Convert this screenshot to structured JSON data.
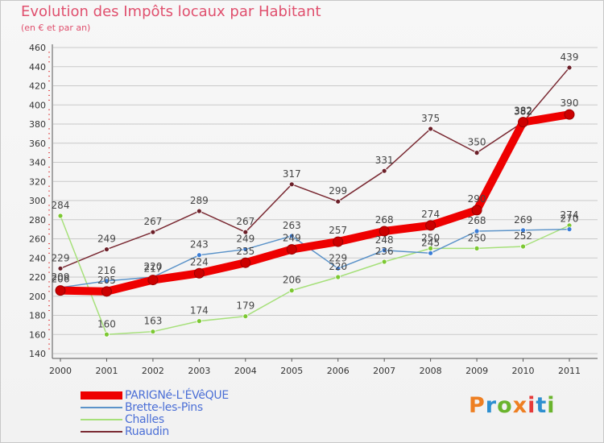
{
  "title": "Evolution des Impôts locaux par Habitant",
  "subtitle": "(en € et par an)",
  "logo": {
    "text": "Proxiti",
    "letter_colors": [
      "#ee7f22",
      "#2e8fd0",
      "#6ab42d",
      "#ee7f22",
      "#e63a3a",
      "#2e8fd0",
      "#6ab42d"
    ]
  },
  "colors": {
    "background": "#f4f4f4",
    "grid": "#c9c9c9",
    "axis_text": "#333333",
    "title": "#e0506e",
    "legend_text": "#4b6fd6"
  },
  "chart_data": {
    "type": "line",
    "title": "Evolution des Impôts locaux par Habitant",
    "subtitle": "(en € et par an)",
    "x": [
      "2000",
      "2001",
      "2002",
      "2003",
      "2004",
      "2005",
      "2006",
      "2007",
      "2008",
      "2009",
      "2010",
      "2011"
    ],
    "ylim": [
      140,
      460
    ],
    "y_ticks": [
      140,
      160,
      180,
      200,
      220,
      240,
      260,
      280,
      300,
      320,
      340,
      360,
      380,
      400,
      420,
      440,
      460
    ],
    "grid": "horizontal",
    "legend_position": "bottom-left",
    "series": [
      {
        "name": "PARIGNé-L'ÉVêQUE",
        "color": "#ee0000",
        "values": [
          206,
          205,
          217,
          224,
          235,
          249,
          257,
          268,
          274,
          290,
          382,
          390
        ],
        "labels": [
          "206",
          "205",
          "217",
          "224",
          "235",
          "249",
          "257",
          "268",
          "274",
          "290",
          "382",
          "390"
        ]
      },
      {
        "name": "Brette-les-Pins",
        "color": "#5b93c9",
        "point_color": "#3a7cd6",
        "values": [
          209,
          216,
          220,
          243,
          249,
          263,
          229,
          248,
          245,
          268,
          269,
          270
        ],
        "labels": [
          "209",
          "216",
          "220",
          "243",
          "249",
          "263",
          "229",
          "248",
          "245",
          "268",
          "269",
          "270"
        ]
      },
      {
        "name": "Challes",
        "color": "#a6e07a",
        "point_color": "#7cc832",
        "values": [
          284,
          160,
          163,
          174,
          179,
          206,
          220,
          236,
          250,
          250,
          252,
          274
        ],
        "labels": [
          "284",
          "160",
          "163",
          "174",
          "179",
          "206",
          "220",
          "236",
          "250",
          "250",
          "252",
          "274"
        ]
      },
      {
        "name": "Ruaudin",
        "color": "#7a2a33",
        "point_color": "#6b1f28",
        "values": [
          229,
          249,
          267,
          289,
          267,
          317,
          299,
          331,
          375,
          350,
          382,
          439
        ],
        "labels": [
          "229",
          "249",
          "267",
          "289",
          "267",
          "317",
          "299",
          "331",
          "375",
          "350",
          "382",
          "439"
        ]
      }
    ]
  }
}
